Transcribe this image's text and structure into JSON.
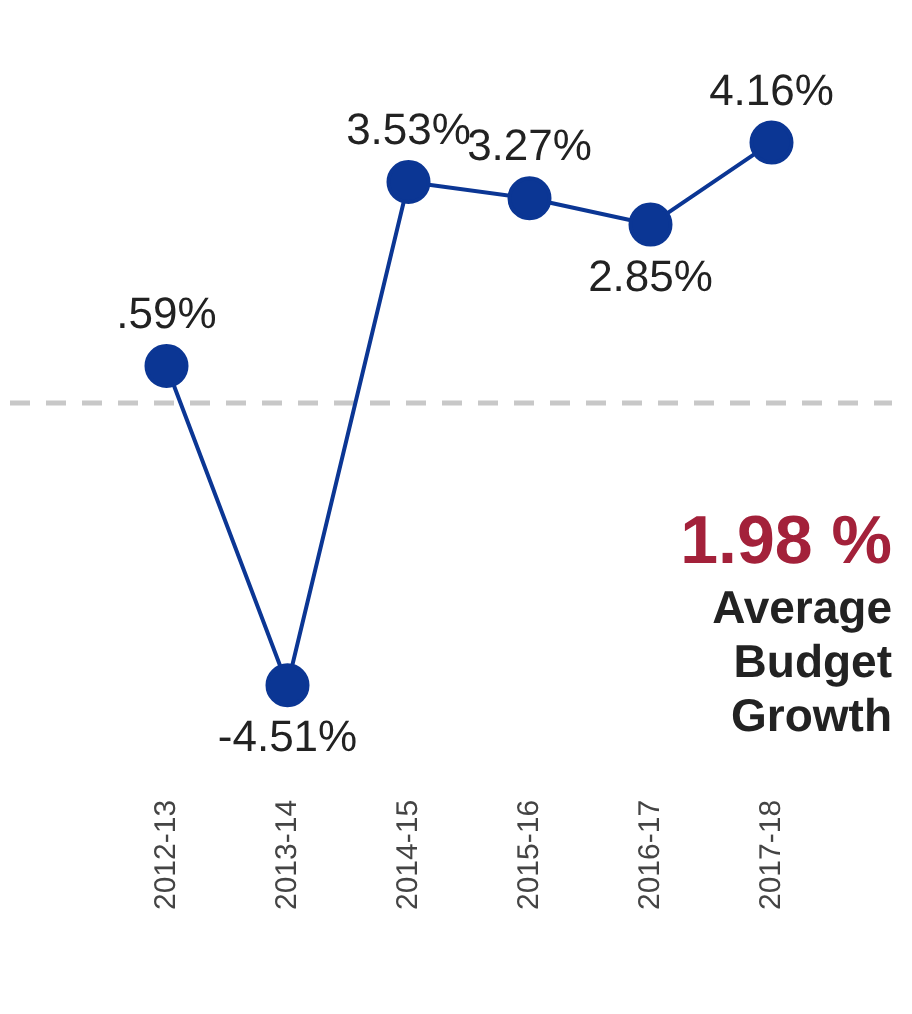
{
  "chart_data": {
    "type": "line",
    "categories": [
      "2012-13",
      "2013-14",
      "2014-15",
      "2015-16",
      "2016-17",
      "2017-18"
    ],
    "series": [
      {
        "color": "#0b3694",
        "values": [
          0.59,
          -4.51,
          3.53,
          3.27,
          2.85,
          4.16
        ],
        "value_labels": [
          ".59%",
          "-4.51%",
          "3.53%",
          "3.27%",
          "2.85%",
          "4.16%"
        ]
      }
    ],
    "tick_labels": "x",
    "marker": "circle",
    "grid": false,
    "legend": false,
    "ref_lines": [
      {
        "axis": "y",
        "value": 0,
        "color": "#c8c8c8",
        "line_style": "dashed"
      }
    ],
    "annotations": [
      "1.98 %",
      "Average Budget Growth"
    ]
  }
}
